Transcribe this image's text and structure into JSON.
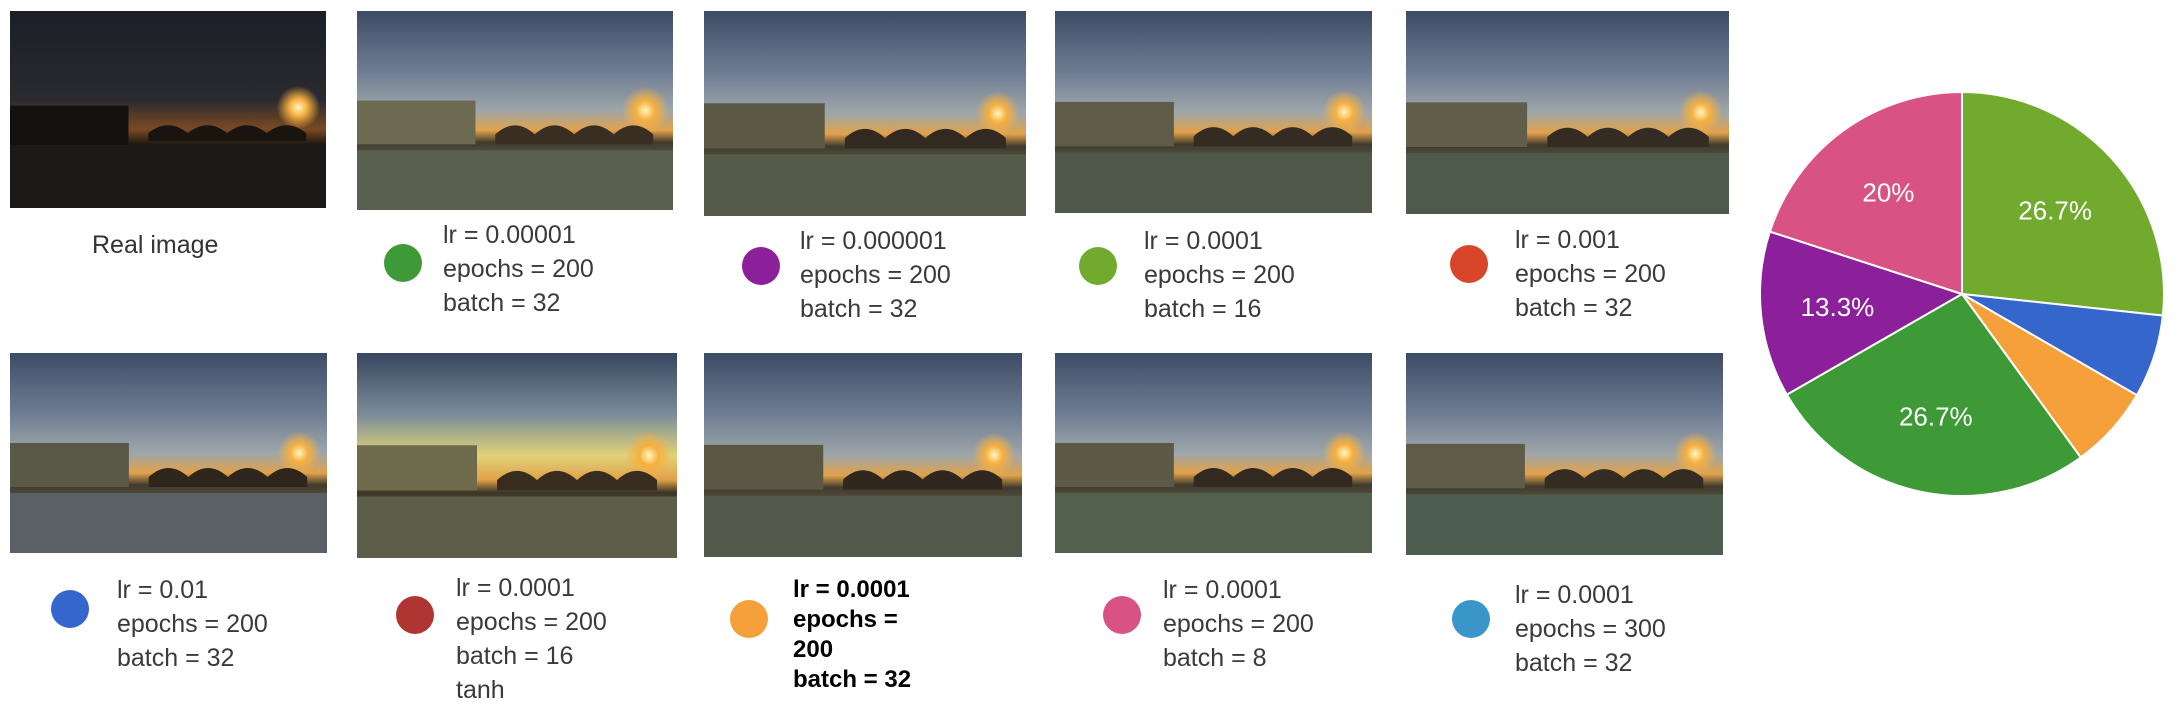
{
  "real_image_caption": "Real image",
  "legend": [
    {
      "color": "#3d9a36",
      "lines": [
        "lr = 0.00001",
        "epochs = 200",
        "batch = 32"
      ]
    },
    {
      "color": "#8c1f9a",
      "lines": [
        "lr = 0.000001",
        "epochs = 200",
        "batch = 32"
      ]
    },
    {
      "color": "#72aa2e",
      "lines": [
        "lr = 0.0001",
        "epochs = 200",
        "batch = 16"
      ]
    },
    {
      "color": "#d9452a",
      "lines": [
        "lr = 0.001",
        "epochs = 200",
        "batch = 32"
      ]
    },
    {
      "color": "#3566cc",
      "lines": [
        "lr = 0.01",
        "epochs = 200",
        "batch = 32"
      ]
    },
    {
      "color": "#b03432",
      "lines": [
        "lr = 0.0001",
        "epochs = 200",
        "batch = 16",
        "tanh"
      ]
    },
    {
      "color": "#f5a03a",
      "bold": true,
      "lines": [
        "lr = 0.0001",
        "epochs =",
        "200",
        "batch = 32"
      ]
    },
    {
      "color": "#d85283",
      "lines": [
        "lr = 0.0001",
        "epochs = 200",
        "batch = 8"
      ]
    },
    {
      "color": "#3a95c9",
      "lines": [
        "lr = 0.0001",
        "epochs = 300",
        "batch = 32"
      ]
    }
  ],
  "chart_data": {
    "type": "pie",
    "start_angle_deg": 90,
    "direction": "clockwise",
    "slices": [
      {
        "color": "#72aa2e",
        "value": 26.7,
        "label": "26.7%"
      },
      {
        "color": "#3566cc",
        "value": 6.65,
        "label": ""
      },
      {
        "color": "#f5a03a",
        "value": 6.65,
        "label": ""
      },
      {
        "color": "#3d9a36",
        "value": 26.7,
        "label": "26.7%"
      },
      {
        "color": "#8c1f9a",
        "value": 13.3,
        "label": "13.3%"
      },
      {
        "color": "#d85283",
        "value": 20,
        "label": "20%"
      }
    ]
  }
}
